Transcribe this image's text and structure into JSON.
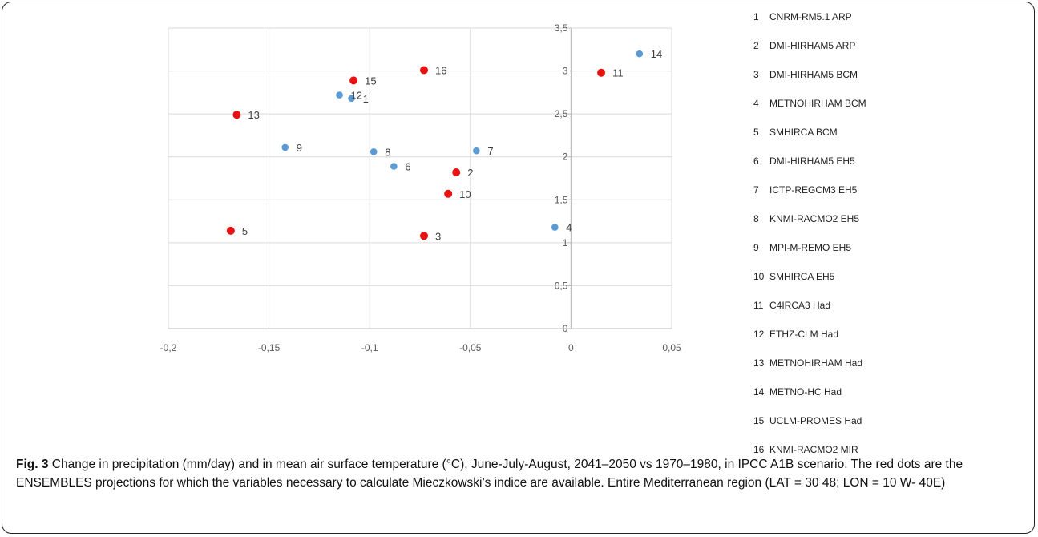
{
  "chart_data": {
    "type": "scatter",
    "title": "",
    "xlabel": "",
    "ylabel": "",
    "xlim": [
      -0.2,
      0.05
    ],
    "ylim": [
      0,
      3.5
    ],
    "x_ticks": [
      -0.2,
      -0.15,
      -0.1,
      -0.05,
      0,
      0.05
    ],
    "y_ticks": [
      0,
      0.5,
      1,
      1.5,
      2,
      2.5,
      3,
      3.5
    ],
    "x_tick_labels": [
      "-0,2",
      "-0,15",
      "-0,1",
      "-0,05",
      "0",
      "0,05"
    ],
    "y_tick_labels": [
      "0",
      "0,5",
      "1",
      "1,5",
      "2",
      "2,5",
      "3",
      "3,5"
    ],
    "grid": true,
    "legend_position": "right",
    "colors": {
      "blue": "#5b9bd5",
      "red": "#e81212"
    },
    "points": [
      {
        "id": "1",
        "x": -0.109,
        "y": 2.68,
        "color": "blue"
      },
      {
        "id": "2",
        "x": -0.057,
        "y": 1.82,
        "color": "red"
      },
      {
        "id": "3",
        "x": -0.073,
        "y": 1.08,
        "color": "red"
      },
      {
        "id": "4",
        "x": -0.008,
        "y": 1.18,
        "color": "blue"
      },
      {
        "id": "5",
        "x": -0.169,
        "y": 1.14,
        "color": "red"
      },
      {
        "id": "6",
        "x": -0.088,
        "y": 1.89,
        "color": "blue"
      },
      {
        "id": "7",
        "x": -0.047,
        "y": 2.07,
        "color": "blue"
      },
      {
        "id": "8",
        "x": -0.098,
        "y": 2.06,
        "color": "blue"
      },
      {
        "id": "9",
        "x": -0.142,
        "y": 2.11,
        "color": "blue"
      },
      {
        "id": "10",
        "x": -0.061,
        "y": 1.57,
        "color": "red"
      },
      {
        "id": "11",
        "x": 0.015,
        "y": 2.98,
        "color": "red"
      },
      {
        "id": "12",
        "x": -0.115,
        "y": 2.72,
        "color": "blue"
      },
      {
        "id": "13",
        "x": -0.166,
        "y": 2.49,
        "color": "red"
      },
      {
        "id": "14",
        "x": 0.034,
        "y": 3.2,
        "color": "blue"
      },
      {
        "id": "15",
        "x": -0.108,
        "y": 2.89,
        "color": "red"
      },
      {
        "id": "16",
        "x": -0.073,
        "y": 3.01,
        "color": "red"
      }
    ],
    "legend": [
      {
        "num": "1",
        "label": "CNRM-RM5.1 ARP"
      },
      {
        "num": "2",
        "label": "DMI-HIRHAM5 ARP"
      },
      {
        "num": "3",
        "label": "DMI-HIRHAM5 BCM"
      },
      {
        "num": "4",
        "label": "METNOHIRHAM BCM"
      },
      {
        "num": "5",
        "label": "SMHIRCA BCM"
      },
      {
        "num": "6",
        "label": "DMI-HIRHAM5 EH5"
      },
      {
        "num": "7",
        "label": "ICTP-REGCM3 EH5"
      },
      {
        "num": "8",
        "label": "KNMI-RACMO2 EH5"
      },
      {
        "num": "9",
        "label": "MPI-M-REMO EH5"
      },
      {
        "num": "10",
        "label": "SMHIRCA EH5"
      },
      {
        "num": "11",
        "label": "C4IRCA3 Had"
      },
      {
        "num": "12",
        "label": "ETHZ-CLM Had"
      },
      {
        "num": "13",
        "label": "METNOHIRHAM Had"
      },
      {
        "num": "14",
        "label": "METNO-HC Had"
      },
      {
        "num": "15",
        "label": "UCLM-PROMES Had"
      },
      {
        "num": "16",
        "label": "KNMI-RACMO2 MIR"
      }
    ]
  },
  "caption": {
    "fig_label": "Fig. 3",
    "text": " Change in precipitation (mm/day) and in mean air surface temperature (°C), June-July-August, 2041–2050 vs 1970–1980, in IPCC A1B scenario. The red dots are the ENSEMBLES projections for which the variables necessary to calculate Mieczkowski’s indice are available. Entire Mediterranean region (LAT = 30 48; LON = 10 W- 40E)"
  }
}
